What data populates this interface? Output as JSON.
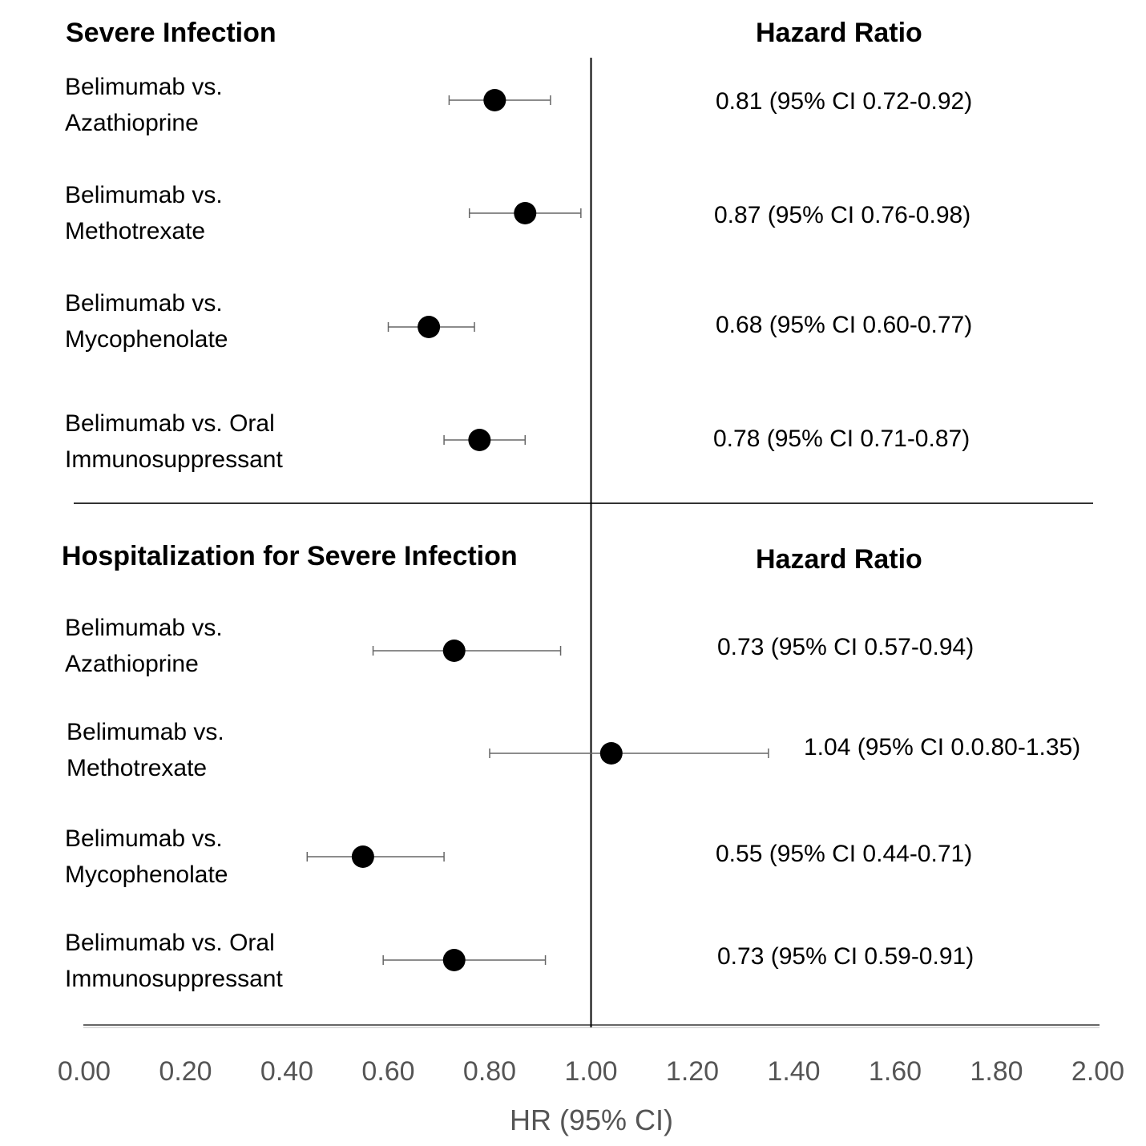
{
  "chart_data": {
    "type": "forest",
    "xlabel": "HR (95% CI)",
    "xlim": [
      0,
      2
    ],
    "reference_line": 1.0,
    "ticks": [
      "0.00",
      "0.20",
      "0.40",
      "0.60",
      "0.80",
      "1.00",
      "1.20",
      "1.40",
      "1.60",
      "1.80",
      "2.00"
    ],
    "tick_values": [
      0,
      0.2,
      0.4,
      0.6,
      0.8,
      1.0,
      1.2,
      1.4,
      1.6,
      1.8,
      2.0
    ],
    "hr_column_header": "Hazard Ratio",
    "groups": [
      {
        "title": "Severe Infection",
        "rows": [
          {
            "label_line1": "Belimumab vs.",
            "label_line2": "Azathioprine",
            "hr": 0.81,
            "lo": 0.72,
            "hi": 0.92,
            "text": "0.81 (95% CI 0.72-0.92)"
          },
          {
            "label_line1": "Belimumab vs.",
            "label_line2": "Methotrexate",
            "hr": 0.87,
            "lo": 0.76,
            "hi": 0.98,
            "text": "0.87 (95% CI 0.76-0.98)"
          },
          {
            "label_line1": "Belimumab vs.",
            "label_line2": "Mycophenolate",
            "hr": 0.68,
            "lo": 0.6,
            "hi": 0.77,
            "text": "0.68 (95% CI 0.60-0.77)"
          },
          {
            "label_line1": "Belimumab vs. Oral",
            "label_line2": "Immunosuppressant",
            "hr": 0.78,
            "lo": 0.71,
            "hi": 0.87,
            "text": "0.78 (95% CI 0.71-0.87)"
          }
        ]
      },
      {
        "title": "Hospitalization for Severe Infection",
        "rows": [
          {
            "label_line1": "Belimumab vs.",
            "label_line2": "Azathioprine",
            "hr": 0.73,
            "lo": 0.57,
            "hi": 0.94,
            "text": "0.73 (95% CI 0.57-0.94)"
          },
          {
            "label_line1": "Belimumab vs.",
            "label_line2": "Methotrexate",
            "hr": 1.04,
            "lo": 0.8,
            "hi": 1.35,
            "text": "1.04 (95% CI 0.0.80-1.35)"
          },
          {
            "label_line1": "Belimumab vs.",
            "label_line2": "Mycophenolate",
            "hr": 0.55,
            "lo": 0.44,
            "hi": 0.71,
            "text": "0.55 (95% CI 0.44-0.71)"
          },
          {
            "label_line1": "Belimumab vs. Oral",
            "label_line2": "Immunosuppressant",
            "hr": 0.73,
            "lo": 0.59,
            "hi": 0.91,
            "text": "0.73 (95% CI 0.59-0.91)"
          }
        ]
      }
    ]
  }
}
